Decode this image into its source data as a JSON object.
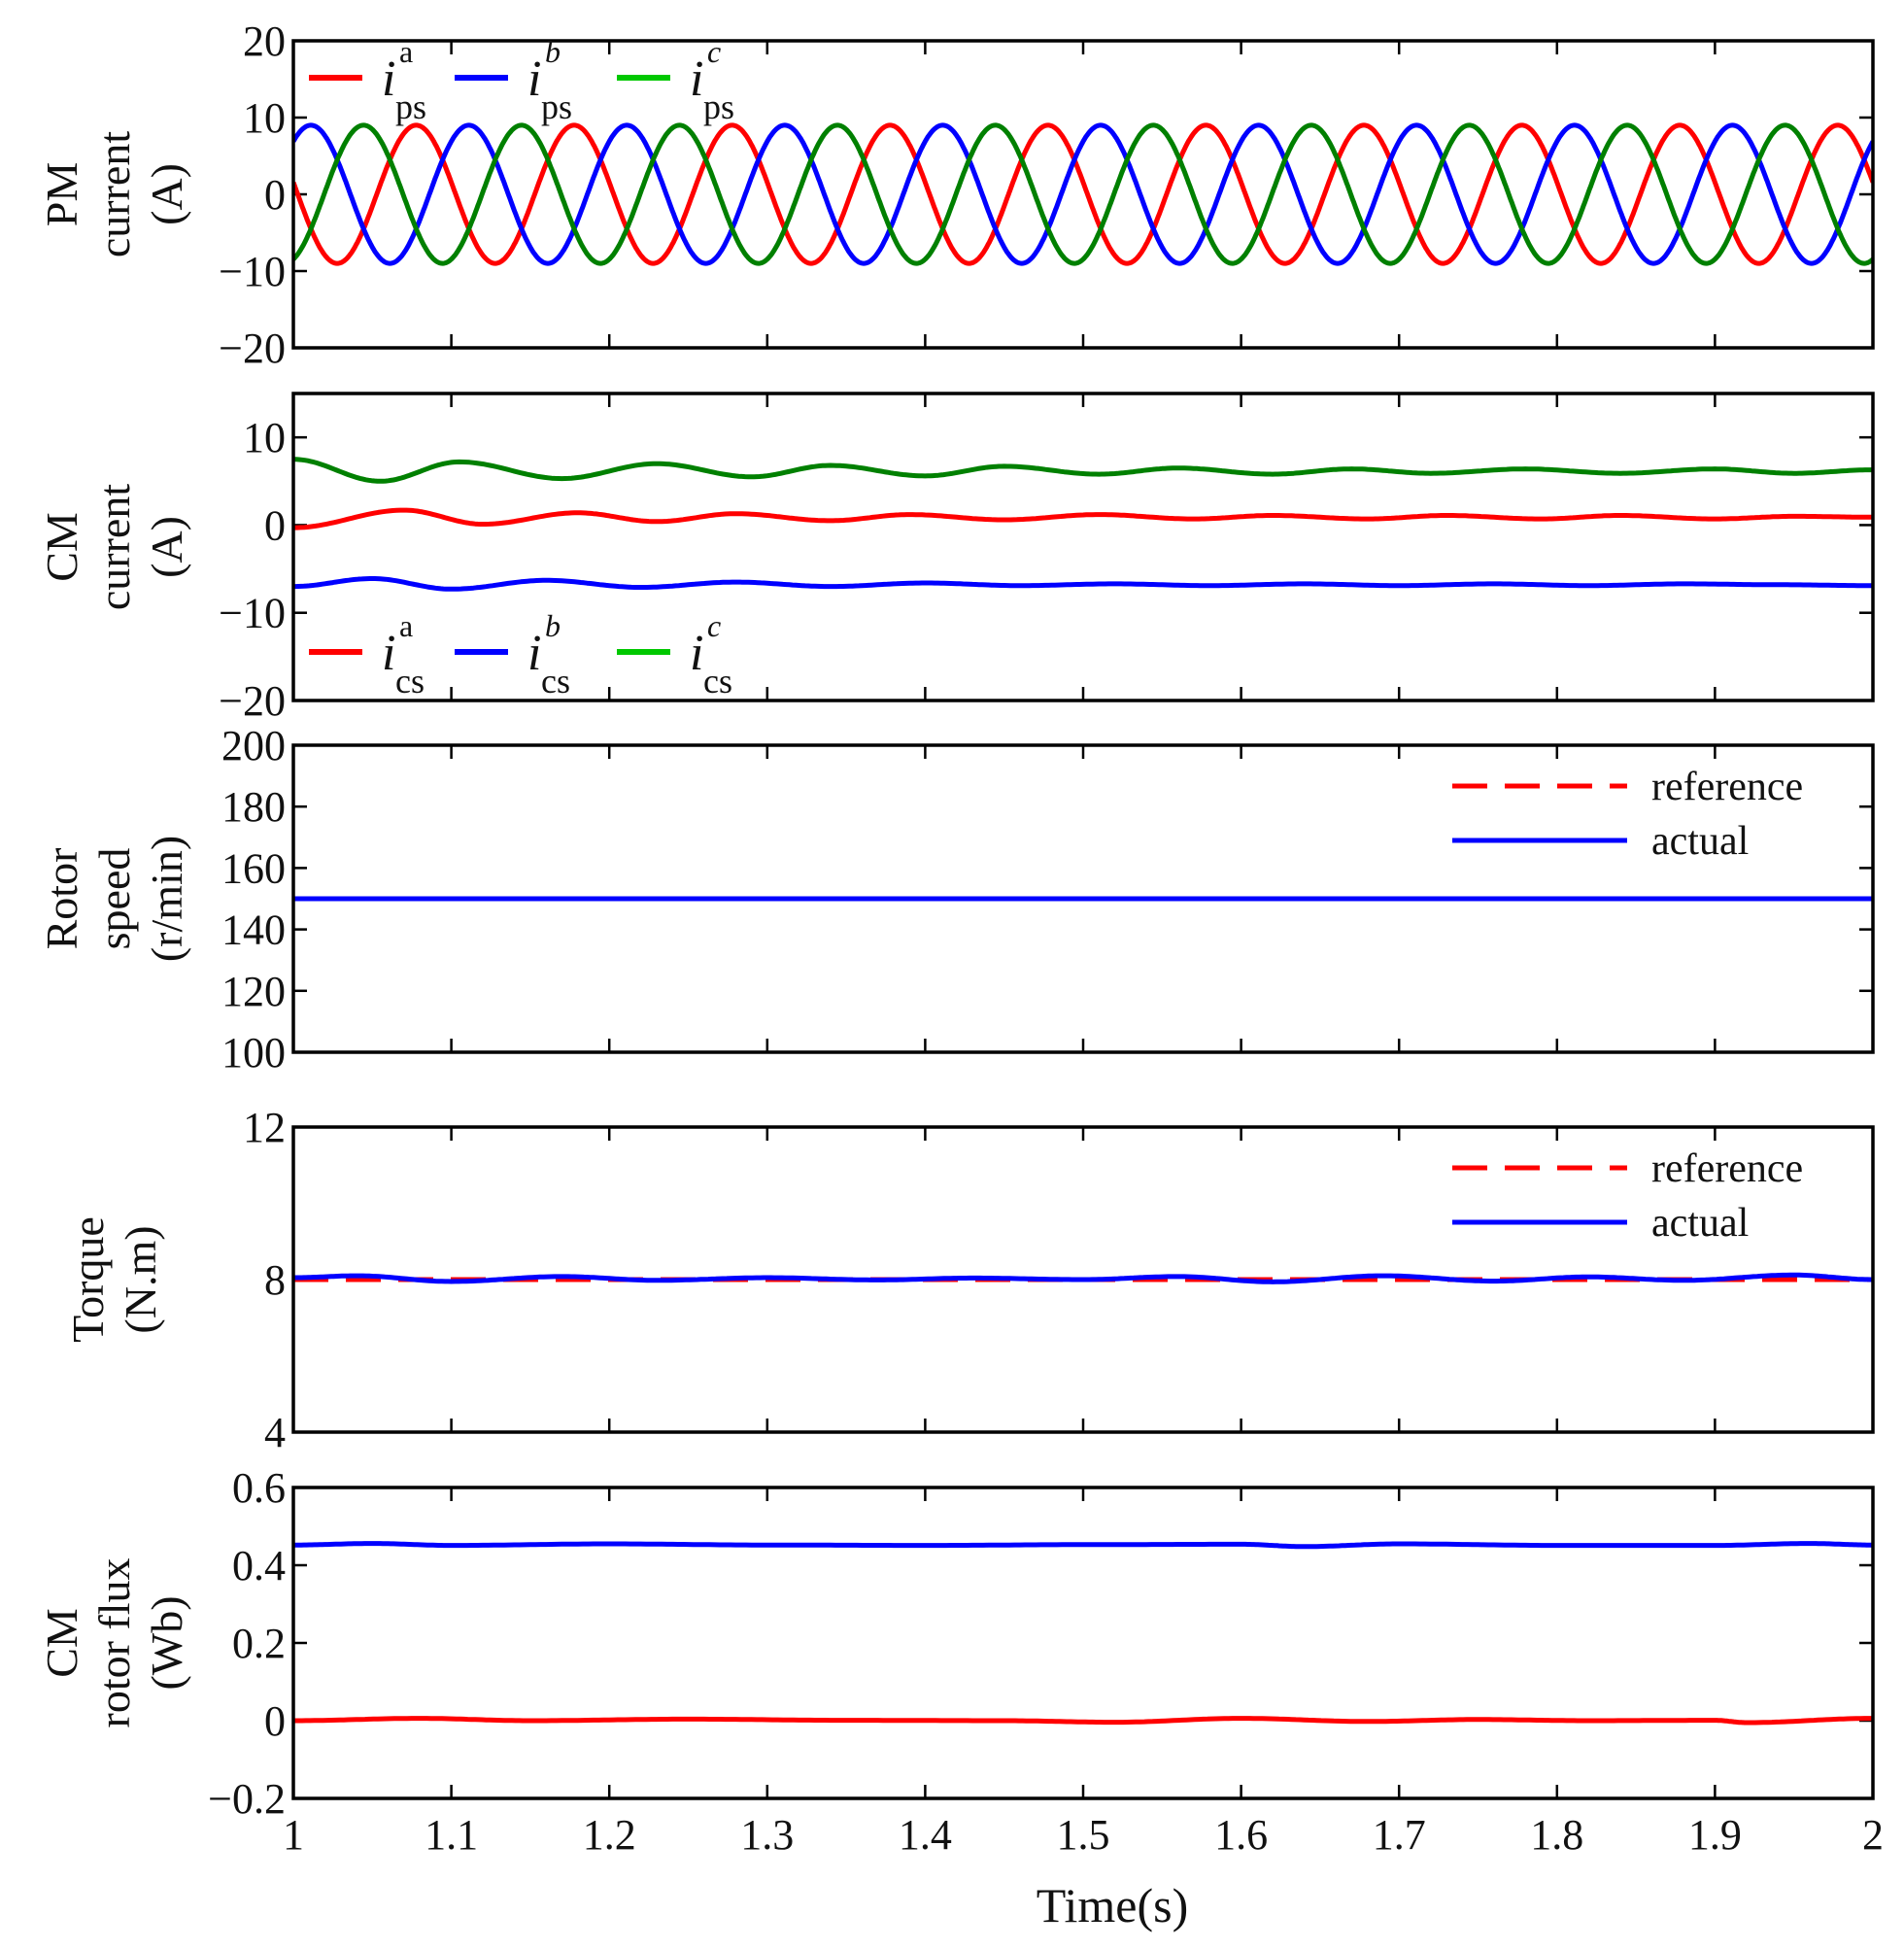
{
  "x_axis": {
    "label": "Time(s)",
    "range": [
      1,
      2
    ],
    "ticks": [
      1,
      1.1,
      1.2,
      1.3,
      1.4,
      1.5,
      1.6,
      1.7,
      1.8,
      1.9,
      2
    ],
    "tick_labels": [
      "1",
      "1.1",
      "1.2",
      "1.3",
      "1.4",
      "1.5",
      "1.6",
      "1.7",
      "1.8",
      "1.9",
      "2"
    ]
  },
  "chart_data": [
    {
      "type": "line",
      "ylabel": [
        "PM",
        "current",
        "(A)"
      ],
      "ylim": [
        -20,
        20
      ],
      "yticks": [
        20,
        10,
        0,
        -10,
        -20
      ],
      "ytick_labels": [
        "20",
        "10",
        "0",
        "−10",
        "−20"
      ],
      "legend_position": "top-left",
      "legend": [
        {
          "symbol": "i",
          "sub": "ps",
          "sup": "a",
          "color": "#ff0000"
        },
        {
          "symbol": "i",
          "sub": "ps",
          "sup": "b",
          "color": "#0000ff"
        },
        {
          "symbol": "i",
          "sub": "ps",
          "sup": "c",
          "color": "#008000"
        }
      ],
      "legend_line_colors": [
        "#ff0000",
        "#0000ff",
        "#00c800"
      ],
      "signal_model": "sinusoid",
      "amplitude": 9,
      "frequency_hz": 10,
      "series": [
        {
          "color": "#ff0000",
          "phase_deg": 170
        },
        {
          "color": "#0000ff",
          "phase_deg": 50
        },
        {
          "color": "#008000",
          "phase_deg": -70
        }
      ]
    },
    {
      "type": "line",
      "ylabel": [
        "CM",
        "current",
        "(A)"
      ],
      "ylim": [
        -20,
        15
      ],
      "yticks": [
        10,
        0,
        -10,
        -20
      ],
      "ytick_labels": [
        "10",
        "0",
        "−10",
        "−20"
      ],
      "legend_position": "bottom-left",
      "legend": [
        {
          "symbol": "i",
          "sub": "cs",
          "sup": "a",
          "color": "#ff0000"
        },
        {
          "symbol": "i",
          "sub": "cs",
          "sup": "b",
          "color": "#0000ff"
        },
        {
          "symbol": "i",
          "sub": "cs",
          "sup": "c",
          "color": "#008000"
        }
      ],
      "legend_line_colors": [
        "#ff0000",
        "#0000ff",
        "#00c800"
      ],
      "series": [
        {
          "color": "#008000",
          "x": [
            1,
            1.055,
            1.105,
            1.17,
            1.23,
            1.29,
            1.34,
            1.4,
            1.45,
            1.51,
            1.56,
            1.62,
            1.67,
            1.72,
            1.78,
            1.84,
            1.9,
            1.95,
            2
          ],
          "y": [
            7.5,
            5.0,
            7.2,
            5.3,
            7.0,
            5.5,
            6.8,
            5.6,
            6.7,
            5.8,
            6.5,
            5.8,
            6.4,
            5.9,
            6.4,
            5.9,
            6.4,
            5.9,
            6.3
          ]
        },
        {
          "color": "#ff0000",
          "x": [
            1,
            1.07,
            1.12,
            1.18,
            1.23,
            1.28,
            1.34,
            1.39,
            1.45,
            1.51,
            1.57,
            1.62,
            1.68,
            1.73,
            1.79,
            1.84,
            1.9,
            1.95,
            2
          ],
          "y": [
            -0.3,
            1.7,
            0.1,
            1.4,
            0.4,
            1.3,
            0.5,
            1.2,
            0.6,
            1.2,
            0.7,
            1.1,
            0.7,
            1.1,
            0.7,
            1.1,
            0.7,
            1.0,
            0.9
          ]
        },
        {
          "color": "#0000ff",
          "x": [
            1,
            1.05,
            1.1,
            1.16,
            1.22,
            1.28,
            1.34,
            1.4,
            1.46,
            1.52,
            1.58,
            1.64,
            1.7,
            1.76,
            1.82,
            1.88,
            1.94,
            2
          ],
          "y": [
            -7.0,
            -6.1,
            -7.3,
            -6.3,
            -7.1,
            -6.5,
            -7.0,
            -6.6,
            -6.9,
            -6.7,
            -6.9,
            -6.7,
            -6.9,
            -6.7,
            -6.9,
            -6.7,
            -6.8,
            -6.9
          ]
        }
      ]
    },
    {
      "type": "line",
      "ylabel": [
        "Rotor",
        "speed",
        "(r/min)"
      ],
      "ylim": [
        100,
        200
      ],
      "yticks": [
        200,
        180,
        160,
        140,
        120,
        100
      ],
      "ytick_labels": [
        "200",
        "180",
        "160",
        "140",
        "120",
        "100"
      ],
      "legend_position": "top-right",
      "legend": [
        {
          "label": "reference",
          "color": "#ff0000",
          "dash": true
        },
        {
          "label": "actual",
          "color": "#0000ff",
          "dash": false
        }
      ],
      "series": [
        {
          "color": "#ff0000",
          "dash": true,
          "x": [
            1,
            2
          ],
          "y": [
            150,
            150
          ]
        },
        {
          "color": "#0000ff",
          "dash": false,
          "x": [
            1,
            2
          ],
          "y": [
            150,
            150
          ]
        }
      ]
    },
    {
      "type": "line",
      "ylabel": [
        "Torque",
        "(N.m)"
      ],
      "ylim": [
        4,
        12
      ],
      "yticks": [
        12,
        8,
        4
      ],
      "ytick_labels": [
        "12",
        "8",
        "4"
      ],
      "legend_position": "top-right",
      "legend": [
        {
          "label": "reference",
          "color": "#ff0000",
          "dash": true
        },
        {
          "label": "actual",
          "color": "#0000ff",
          "dash": false
        }
      ],
      "series": [
        {
          "color": "#ff0000",
          "dash": true,
          "x": [
            1,
            2
          ],
          "y": [
            8,
            8
          ]
        },
        {
          "color": "#0000ff",
          "dash": false,
          "x": [
            1,
            1.04,
            1.1,
            1.17,
            1.23,
            1.3,
            1.37,
            1.43,
            1.5,
            1.56,
            1.62,
            1.69,
            1.76,
            1.82,
            1.88,
            1.95,
            2
          ],
          "y": [
            8.05,
            8.1,
            7.95,
            8.08,
            7.98,
            8.05,
            7.99,
            8.04,
            8.0,
            8.08,
            7.94,
            8.1,
            7.96,
            8.07,
            7.98,
            8.12,
            8.0
          ]
        }
      ]
    },
    {
      "type": "line",
      "ylabel": [
        "CM",
        "rotor flux",
        "(Wb)"
      ],
      "ylim": [
        -0.2,
        0.6
      ],
      "yticks": [
        0.6,
        0.4,
        0.2,
        0,
        -0.2
      ],
      "ytick_labels": [
        "0.6",
        "0.4",
        "0.2",
        "0",
        "−0.2"
      ],
      "series": [
        {
          "color": "#0000ff",
          "x": [
            1,
            1.05,
            1.1,
            1.2,
            1.3,
            1.4,
            1.5,
            1.6,
            1.64,
            1.7,
            1.8,
            1.9,
            1.96,
            2
          ],
          "y": [
            0.452,
            0.456,
            0.451,
            0.455,
            0.452,
            0.451,
            0.453,
            0.454,
            0.448,
            0.455,
            0.451,
            0.451,
            0.456,
            0.452
          ]
        },
        {
          "color": "#ff0000",
          "x": [
            1,
            1.08,
            1.15,
            1.25,
            1.35,
            1.45,
            1.52,
            1.6,
            1.68,
            1.75,
            1.82,
            1.9,
            1.92,
            2
          ],
          "y": [
            0.0,
            0.006,
            0.0,
            0.004,
            0.001,
            0.0,
            -0.004,
            0.006,
            -0.002,
            0.003,
            0.0,
            0.001,
            -0.005,
            0.006
          ]
        }
      ]
    }
  ]
}
